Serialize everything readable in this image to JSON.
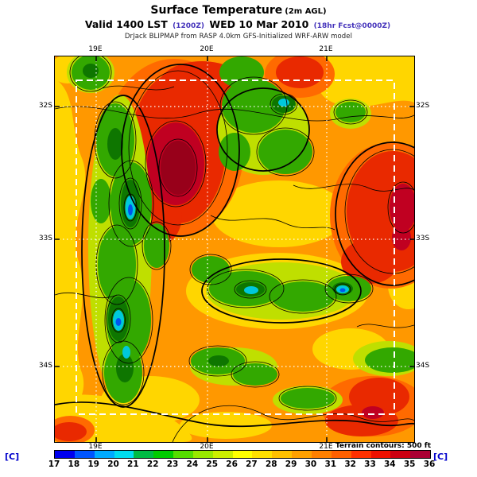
{
  "header": {
    "title": "Surface Temperature",
    "title_suffix": "(2m AGL)",
    "valid_prefix": "Valid 1400 LST",
    "valid_zulu": "(1200Z)",
    "valid_date": "WED 10 Mar 2010",
    "valid_fcst": "(18hr Fcst@0000Z)",
    "model_line": "DrJack BLIPMAP from RASP 4.0km GFS-Initialized WRF-ARW model"
  },
  "map": {
    "top_labels": [
      "19E",
      "20E",
      "21E"
    ],
    "bottom_labels": [
      "19E",
      "20E",
      "21E"
    ],
    "left_labels": [
      "32S",
      "33S",
      "34S"
    ],
    "right_labels": [
      "32S",
      "33S",
      "34S"
    ],
    "terrain_note": "Terrain contours: 500 ft"
  },
  "colorbar": {
    "unit": "[C]",
    "values": [
      "17",
      "18",
      "19",
      "20",
      "21",
      "22",
      "23",
      "24",
      "25",
      "26",
      "27",
      "28",
      "29",
      "30",
      "31",
      "32",
      "33",
      "34",
      "35",
      "36"
    ],
    "segments": [
      "#0000EE",
      "#0055FF",
      "#00AAFF",
      "#00DDEE",
      "#00BB44",
      "#00CC00",
      "#55DD00",
      "#99E800",
      "#CCEE00",
      "#FFFF00",
      "#FFE000",
      "#FFC000",
      "#FFA000",
      "#FF8000",
      "#FF6000",
      "#FF3000",
      "#EE1100",
      "#CC0011",
      "#AA0033"
    ]
  },
  "palette": {
    "base_orange": "#FF9800",
    "warm_yellow": "#FFD600",
    "yellow_green": "#BFDF00",
    "green": "#33A800",
    "dark_green": "#0E7600",
    "cyan": "#00C8DC",
    "blue": "#0055EE",
    "deep_orange": "#FF6A00",
    "red": "#E92900",
    "dark_red": "#C00021",
    "crimson": "#98001A",
    "contour_black": "#000000",
    "grid_white": "#FFFFFF",
    "unit_blue": "#0000CC",
    "paren_purple": "#4433BB"
  }
}
